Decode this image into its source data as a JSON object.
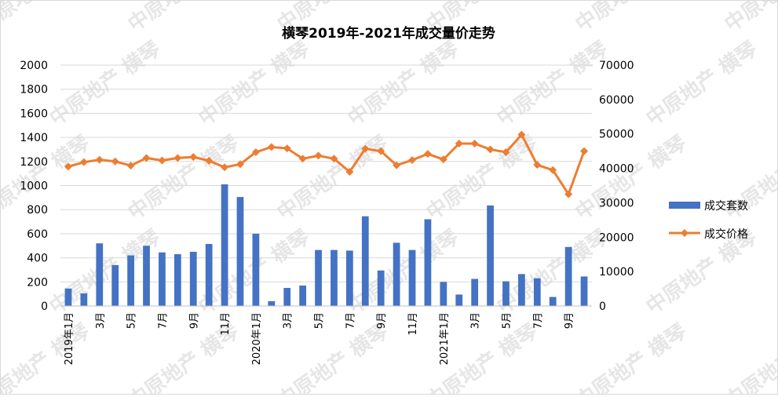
{
  "chart_data": {
    "type": "bar+line",
    "title": "横琴2019年-2021年成交量价走势",
    "categories": [
      "2019年1月",
      "2月",
      "3月",
      "4月",
      "5月",
      "6月",
      "7月",
      "8月",
      "9月",
      "10月",
      "11月",
      "12月",
      "2020年1月",
      "2月",
      "3月",
      "4月",
      "5月",
      "6月",
      "7月",
      "8月",
      "9月",
      "10月",
      "11月",
      "12月",
      "2021年1月",
      "2月",
      "3月",
      "4月",
      "5月",
      "6月",
      "7月",
      "8月",
      "9月",
      "10月"
    ],
    "x_tick_labels": [
      "2019年1月",
      "",
      "3月",
      "",
      "5月",
      "",
      "7月",
      "",
      "9月",
      "",
      "11月",
      "",
      "2020年1月",
      "",
      "3月",
      "",
      "5月",
      "",
      "7月",
      "",
      "9月",
      "",
      "11月",
      "",
      "2021年1月",
      "",
      "3月",
      "",
      "5月",
      "",
      "7月",
      "",
      "9月",
      ""
    ],
    "series": [
      {
        "name": "成交套数",
        "type": "bar",
        "axis": "left",
        "color": "#4472c4",
        "values": [
          145,
          105,
          520,
          340,
          420,
          500,
          445,
          430,
          450,
          515,
          1010,
          905,
          600,
          40,
          150,
          170,
          465,
          465,
          460,
          745,
          295,
          525,
          465,
          720,
          200,
          95,
          225,
          835,
          205,
          265,
          230,
          75,
          490,
          245
        ]
      },
      {
        "name": "成交价格",
        "type": "line",
        "axis": "right",
        "color": "#ed7d31",
        "values": [
          40500,
          41800,
          42500,
          42000,
          40800,
          43000,
          42300,
          43000,
          43300,
          42200,
          40300,
          41200,
          44700,
          46200,
          45800,
          42800,
          43700,
          42800,
          39000,
          45700,
          45000,
          40900,
          42400,
          44200,
          42600,
          47200,
          47200,
          45500,
          44700,
          49800,
          41000,
          39500,
          32500,
          45000
        ]
      }
    ],
    "y_left": {
      "min": 0,
      "max": 2000,
      "step": 200,
      "ticks": [
        "0",
        "200",
        "400",
        "600",
        "800",
        "1000",
        "1200",
        "1400",
        "1600",
        "1800",
        "2000"
      ]
    },
    "y_right": {
      "min": 0,
      "max": 70000,
      "step": 10000,
      "ticks": [
        "0",
        "10000",
        "20000",
        "30000",
        "40000",
        "50000",
        "60000",
        "70000"
      ]
    },
    "grid": true,
    "legend_position": "right"
  },
  "watermark": {
    "text": "中原地产 横琴",
    "color": "#e6e6e6"
  }
}
